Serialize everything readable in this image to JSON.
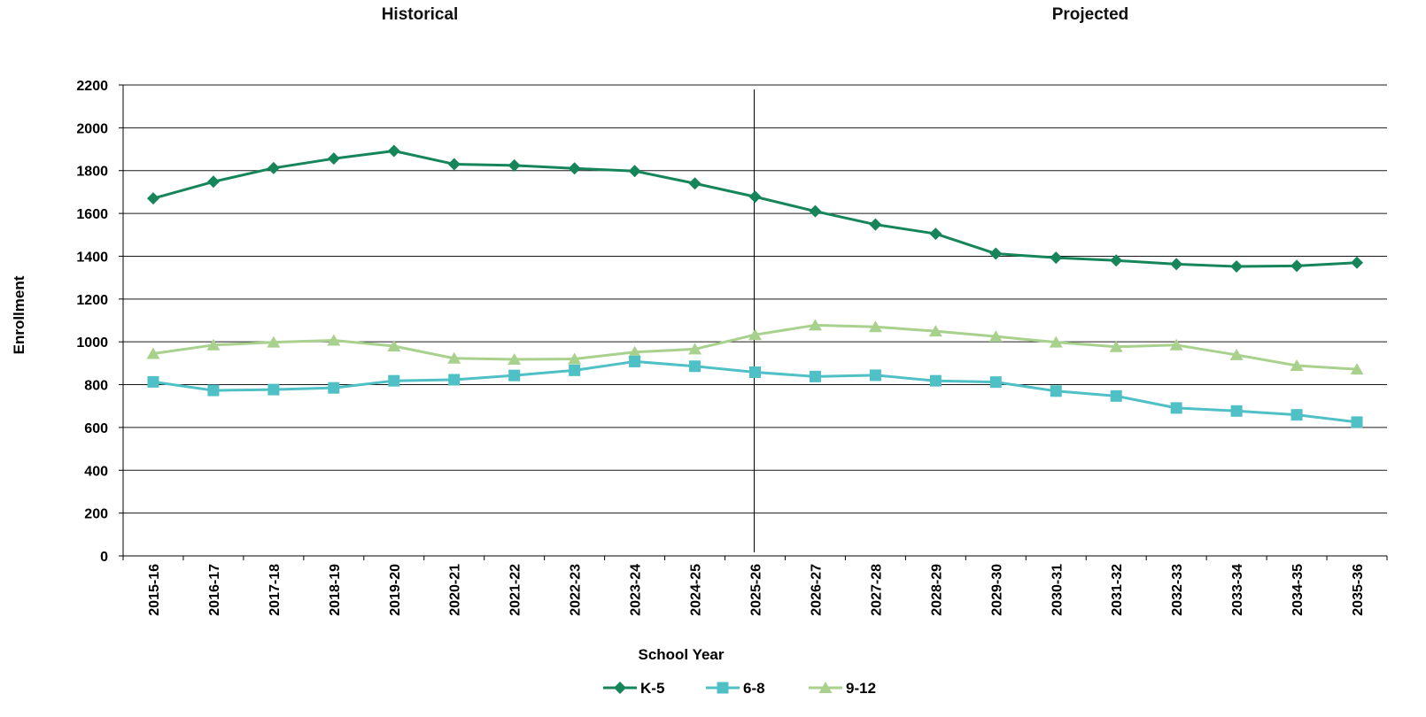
{
  "chart_data": {
    "type": "line",
    "section_labels": [
      "Historical",
      "Projected"
    ],
    "xlabel": "School Year",
    "ylabel": "Enrollment",
    "ylim": [
      0,
      2200
    ],
    "yticks": [
      0,
      200,
      400,
      600,
      800,
      1000,
      1200,
      1400,
      1600,
      1800,
      2000,
      2200
    ],
    "grid": true,
    "legend_position": "bottom",
    "divider_after_category": "2025-26",
    "categories": [
      "2015-16",
      "2016-17",
      "2017-18",
      "2018-19",
      "2019-20",
      "2020-21",
      "2021-22",
      "2022-23",
      "2023-24",
      "2024-25",
      "2025-26",
      "2026-27",
      "2027-28",
      "2028-29",
      "2029-30",
      "2030-31",
      "2031-32",
      "2032-33",
      "2033-34",
      "2034-35",
      "2035-36"
    ],
    "series": [
      {
        "name": "K-5",
        "color": "#17855a",
        "marker": "diamond",
        "values": [
          1670,
          1748,
          1812,
          1856,
          1892,
          1830,
          1824,
          1810,
          1798,
          1740,
          1678,
          1610,
          1548,
          1505,
          1412,
          1393,
          1380,
          1363,
          1352,
          1355,
          1370
        ]
      },
      {
        "name": "6-8",
        "color": "#4fc0c6",
        "marker": "square",
        "values": [
          813,
          773,
          777,
          785,
          818,
          823,
          843,
          867,
          908,
          886,
          858,
          838,
          844,
          818,
          812,
          770,
          747,
          691,
          677,
          659,
          625
        ]
      },
      {
        "name": "9-12",
        "color": "#a9d18e",
        "marker": "triangle",
        "values": [
          945,
          985,
          998,
          1007,
          980,
          923,
          918,
          920,
          952,
          966,
          1033,
          1078,
          1070,
          1050,
          1025,
          998,
          977,
          985,
          939,
          889,
          872
        ]
      }
    ]
  }
}
